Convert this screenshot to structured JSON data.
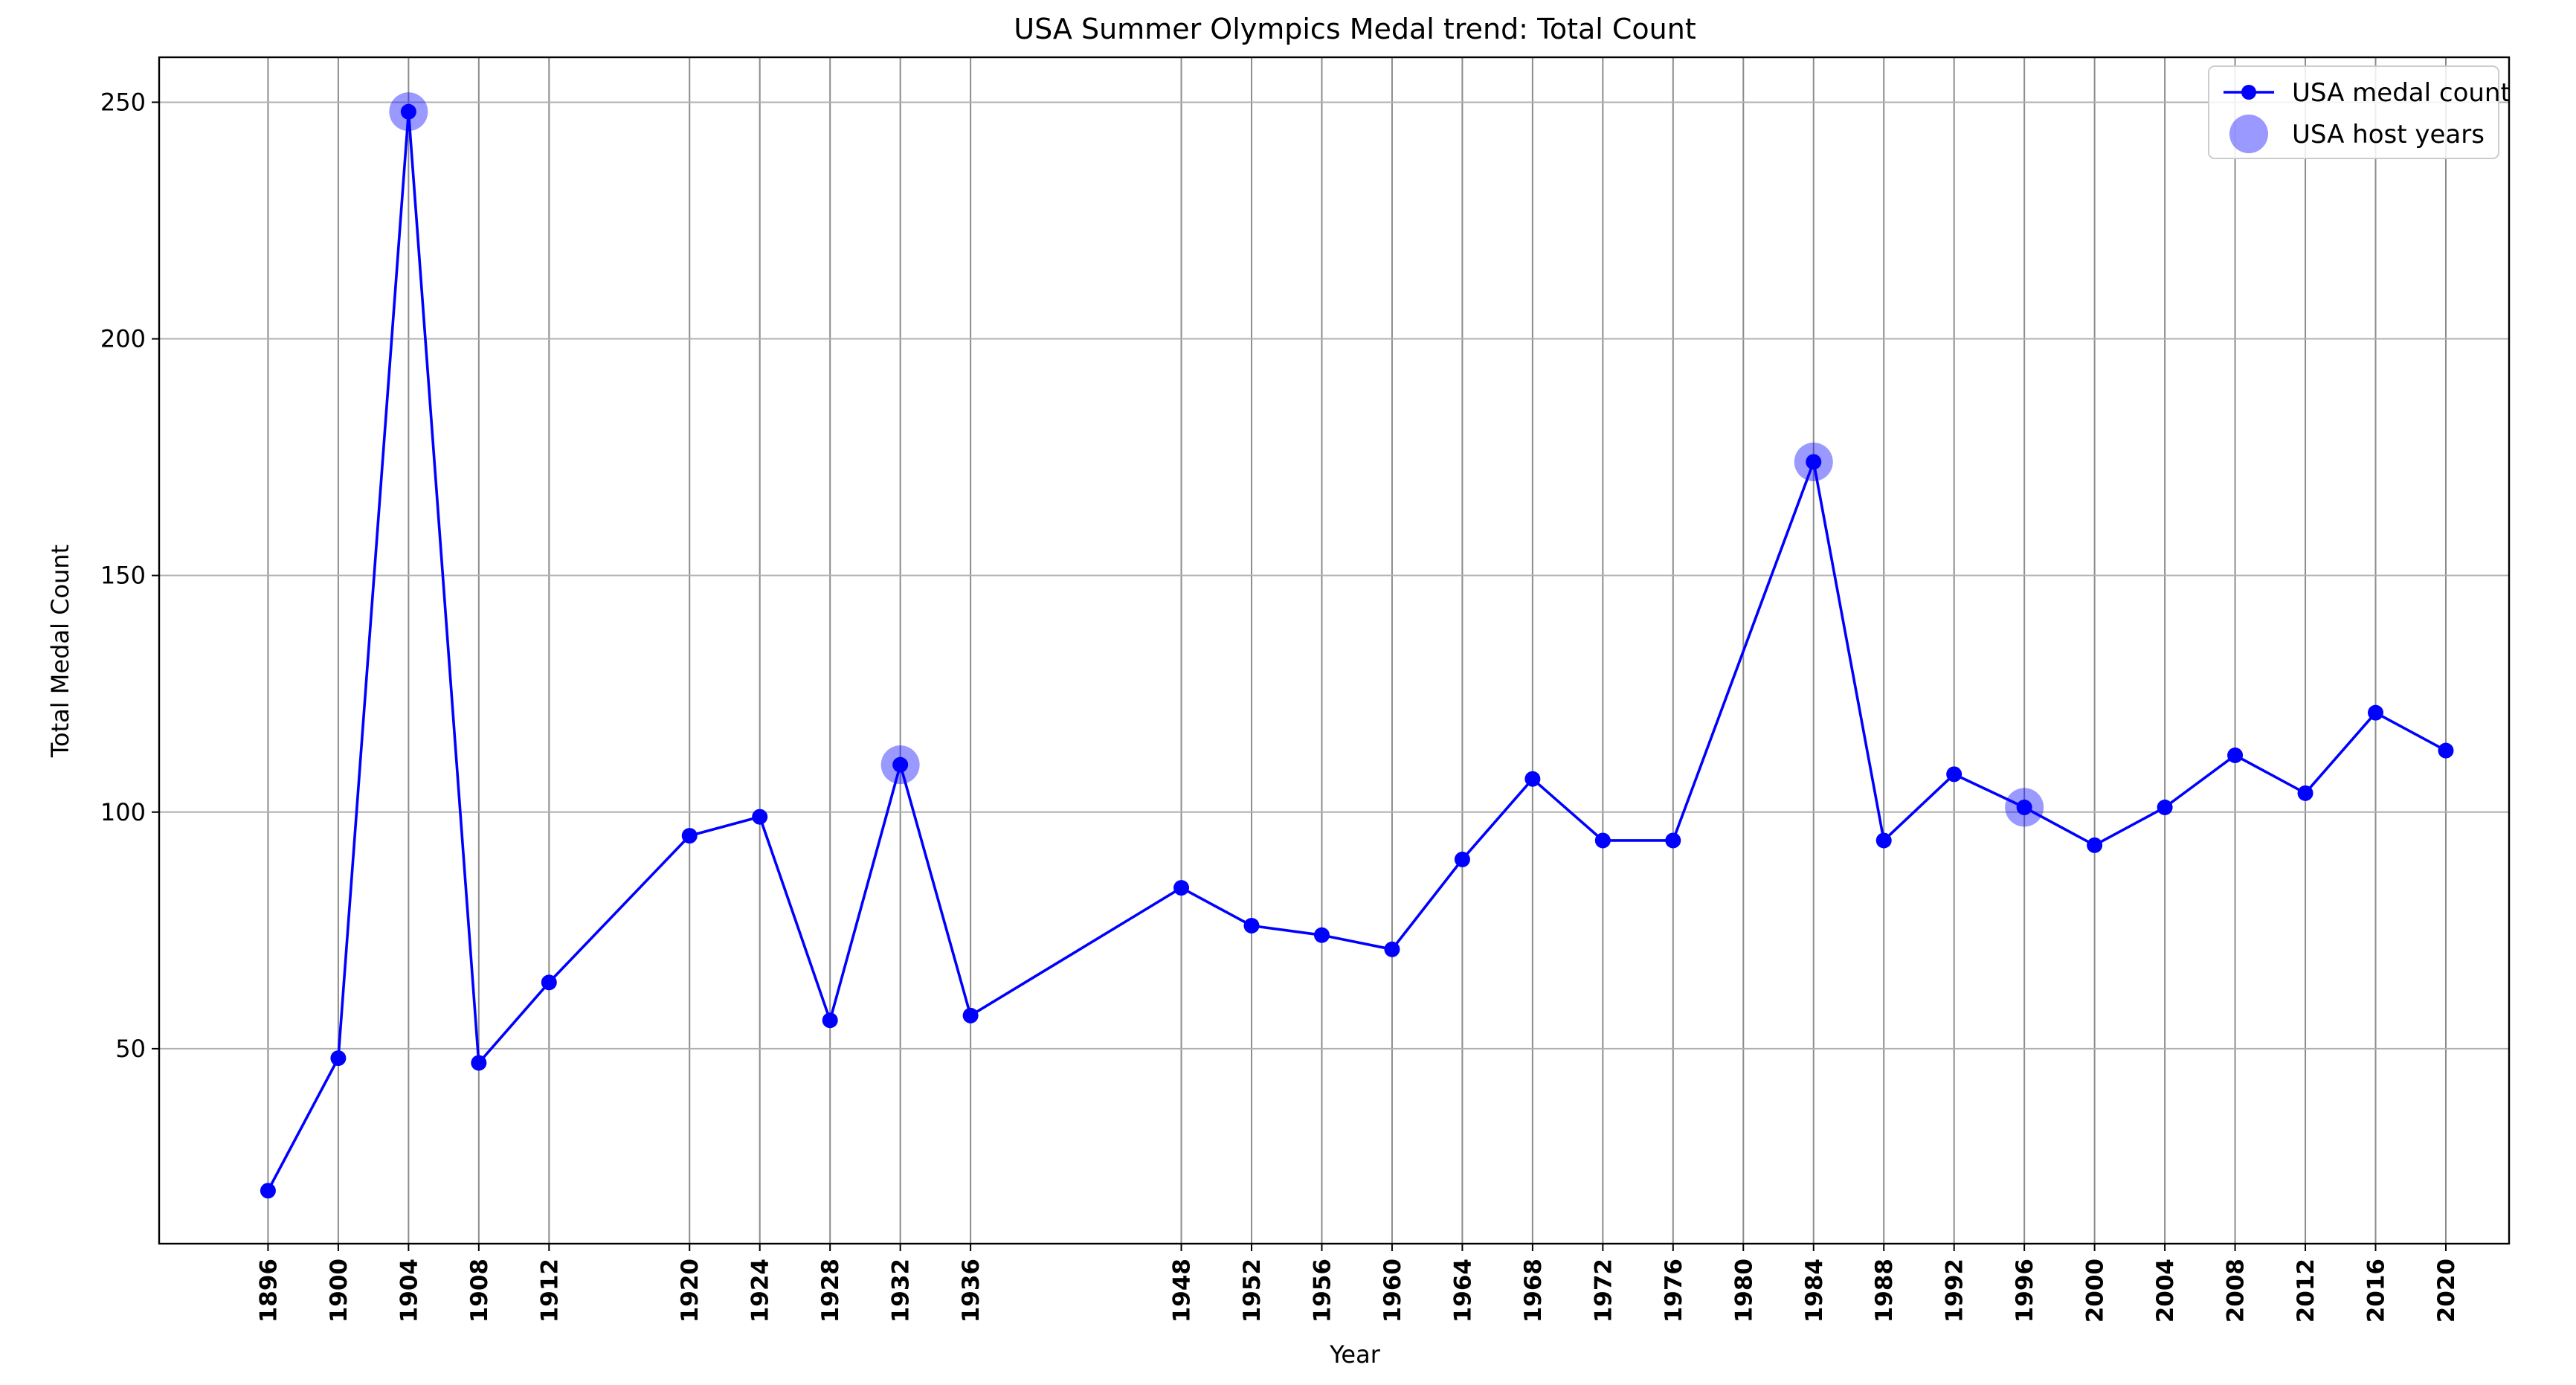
{
  "chart_data": {
    "type": "line",
    "title": "USA Summer Olympics Medal trend: Total Count",
    "xlabel": "Year",
    "ylabel": "Total Medal Count",
    "x_ticks": [
      "1896",
      "1900",
      "1904",
      "1908",
      "1912",
      "1920",
      "1924",
      "1928",
      "1932",
      "1936",
      "1948",
      "1952",
      "1956",
      "1960",
      "1964",
      "1968",
      "1972",
      "1976",
      "1980",
      "1984",
      "1988",
      "1992",
      "1996",
      "2000",
      "2004",
      "2008",
      "2012",
      "2016",
      "2020"
    ],
    "y_ticks": [
      "50",
      "100",
      "150",
      "200",
      "250"
    ],
    "xlim": [
      1889.8,
      2023.6
    ],
    "ylim": [
      8.8,
      259.5
    ],
    "grid": true,
    "legend_position": "top-right",
    "series": [
      {
        "name": "USA medal count",
        "color": "#0000ff",
        "x": [
          1896,
          1900,
          1904,
          1908,
          1912,
          1920,
          1924,
          1928,
          1932,
          1936,
          1948,
          1952,
          1956,
          1960,
          1964,
          1968,
          1972,
          1976,
          1984,
          1988,
          1992,
          1996,
          2000,
          2004,
          2008,
          2012,
          2016,
          2020
        ],
        "y": [
          20,
          48,
          248,
          47,
          64,
          95,
          99,
          56,
          110,
          57,
          84,
          76,
          74,
          71,
          90,
          107,
          94,
          94,
          174,
          94,
          108,
          101,
          93,
          101,
          112,
          104,
          121,
          113
        ]
      },
      {
        "name": "USA host years",
        "color": "#0000ff",
        "x": [
          1904,
          1932,
          1984,
          1996
        ],
        "y": [
          248,
          110,
          174,
          101
        ]
      }
    ]
  }
}
